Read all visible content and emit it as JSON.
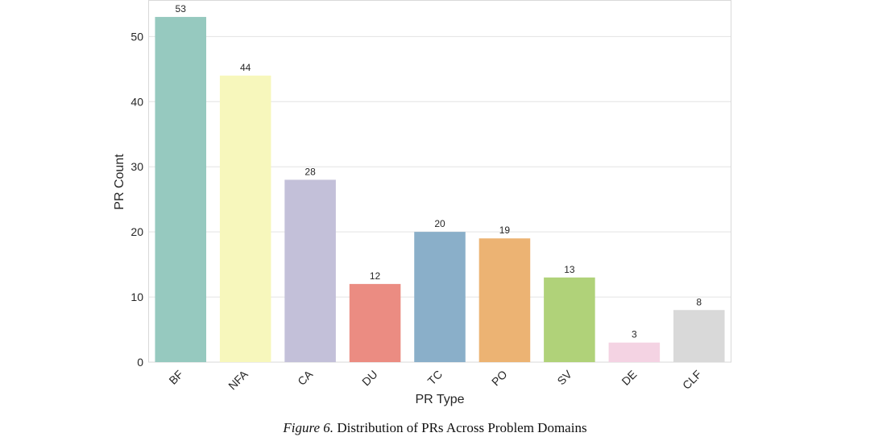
{
  "chart_data": {
    "type": "bar",
    "categories": [
      "BF",
      "NFA",
      "CA",
      "DU",
      "TC",
      "PO",
      "SV",
      "DE",
      "CLF"
    ],
    "values": [
      53,
      44,
      28,
      12,
      20,
      19,
      13,
      3,
      8
    ],
    "colors": [
      "#96c9bf",
      "#f7f7bc",
      "#c3c0d9",
      "#eb8c82",
      "#8aafc9",
      "#ecb373",
      "#b0d279",
      "#f4d3e3",
      "#d9d9d9"
    ],
    "xlabel": "PR Type",
    "ylabel": "PR Count",
    "ylim": [
      0,
      55.6
    ],
    "yticks": [
      0,
      10,
      20,
      30,
      40,
      50
    ],
    "grid": true,
    "data_labels": true
  },
  "caption": {
    "figure_number": "Figure 6.",
    "text": "Distribution of PRs Across Problem Domains"
  }
}
